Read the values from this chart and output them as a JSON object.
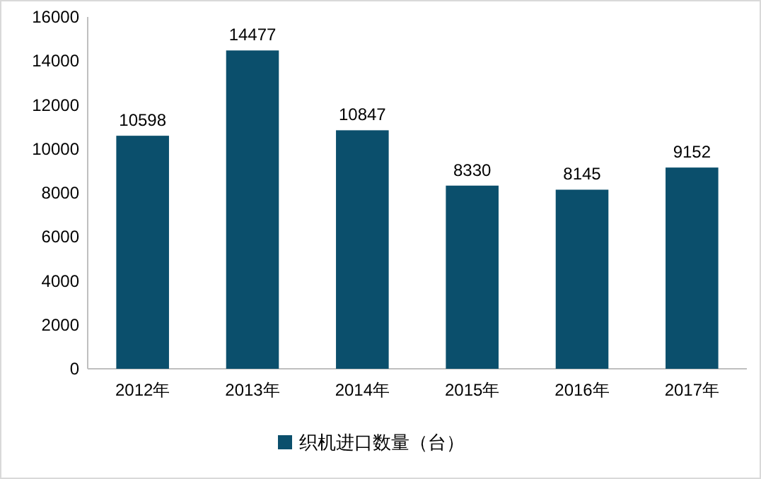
{
  "chart_data": {
    "type": "bar",
    "categories": [
      "2012年",
      "2013年",
      "2014年",
      "2015年",
      "2016年",
      "2017年"
    ],
    "series": [
      {
        "name": "织机进口数量（台）",
        "color": "#0b4f6c",
        "values": [
          10598,
          14477,
          10847,
          8330,
          8145,
          9152
        ]
      }
    ],
    "ylim": [
      0,
      16000
    ],
    "yticks": [
      0,
      2000,
      4000,
      6000,
      8000,
      10000,
      12000,
      14000,
      16000
    ],
    "data_labels": true,
    "legend": "bottom",
    "grid": false
  }
}
